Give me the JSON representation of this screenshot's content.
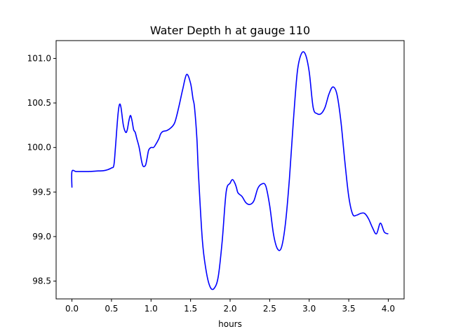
{
  "chart_data": {
    "type": "line",
    "title": "Water Depth h at gauge 110",
    "xlabel": "hours",
    "ylabel": "",
    "xlim": [
      -0.2,
      4.2
    ],
    "ylim": [
      98.3,
      101.2
    ],
    "xticks": [
      0.0,
      0.5,
      1.0,
      1.5,
      2.0,
      2.5,
      3.0,
      3.5,
      4.0
    ],
    "xtick_labels": [
      "0.0",
      "0.5",
      "1.0",
      "1.5",
      "2.0",
      "2.5",
      "3.0",
      "3.5",
      "4.0"
    ],
    "yticks": [
      98.5,
      99.0,
      99.5,
      100.0,
      100.5,
      101.0
    ],
    "ytick_labels": [
      "98.5",
      "99.0",
      "99.5",
      "100.0",
      "100.5",
      "101.0"
    ],
    "grid": false,
    "series": [
      {
        "color": "#0000ff",
        "x": [
          0.0,
          0.0,
          0.05,
          0.1,
          0.2,
          0.3,
          0.4,
          0.45,
          0.5,
          0.53,
          0.55,
          0.58,
          0.6,
          0.62,
          0.65,
          0.68,
          0.7,
          0.72,
          0.74,
          0.76,
          0.78,
          0.8,
          0.82,
          0.85,
          0.88,
          0.9,
          0.93,
          0.95,
          0.97,
          1.0,
          1.03,
          1.05,
          1.1,
          1.12,
          1.15,
          1.2,
          1.25,
          1.3,
          1.35,
          1.4,
          1.45,
          1.5,
          1.53,
          1.55,
          1.58,
          1.6,
          1.65,
          1.7,
          1.75,
          1.8,
          1.85,
          1.9,
          1.95,
          2.0,
          2.03,
          2.06,
          2.08,
          2.1,
          2.15,
          2.2,
          2.25,
          2.3,
          2.35,
          2.4,
          2.45,
          2.5,
          2.55,
          2.6,
          2.65,
          2.7,
          2.75,
          2.8,
          2.85,
          2.9,
          2.95,
          3.0,
          3.05,
          3.1,
          3.15,
          3.2,
          3.25,
          3.3,
          3.35,
          3.4,
          3.45,
          3.5,
          3.55,
          3.6,
          3.65,
          3.7,
          3.75,
          3.8,
          3.85,
          3.9,
          3.95,
          4.0
        ],
        "y": [
          99.55,
          99.73,
          99.73,
          99.73,
          99.73,
          99.735,
          99.74,
          99.75,
          99.77,
          99.8,
          100.0,
          100.35,
          100.48,
          100.45,
          100.25,
          100.17,
          100.2,
          100.3,
          100.36,
          100.3,
          100.2,
          100.17,
          100.1,
          100.0,
          99.85,
          99.79,
          99.8,
          99.88,
          99.97,
          100.0,
          100.0,
          100.02,
          100.1,
          100.15,
          100.18,
          100.19,
          100.22,
          100.28,
          100.45,
          100.65,
          100.82,
          100.72,
          100.55,
          100.45,
          100.1,
          99.7,
          98.95,
          98.6,
          98.43,
          98.42,
          98.55,
          98.95,
          99.5,
          99.6,
          99.64,
          99.6,
          99.55,
          99.49,
          99.45,
          99.38,
          99.36,
          99.4,
          99.54,
          99.59,
          99.57,
          99.35,
          99.02,
          98.86,
          98.88,
          99.15,
          99.65,
          100.3,
          100.85,
          101.05,
          101.05,
          100.85,
          100.45,
          100.38,
          100.38,
          100.45,
          100.6,
          100.68,
          100.6,
          100.3,
          99.85,
          99.45,
          99.25,
          99.24,
          99.26,
          99.26,
          99.2,
          99.1,
          99.03,
          99.15,
          99.05,
          99.03
        ]
      }
    ]
  }
}
